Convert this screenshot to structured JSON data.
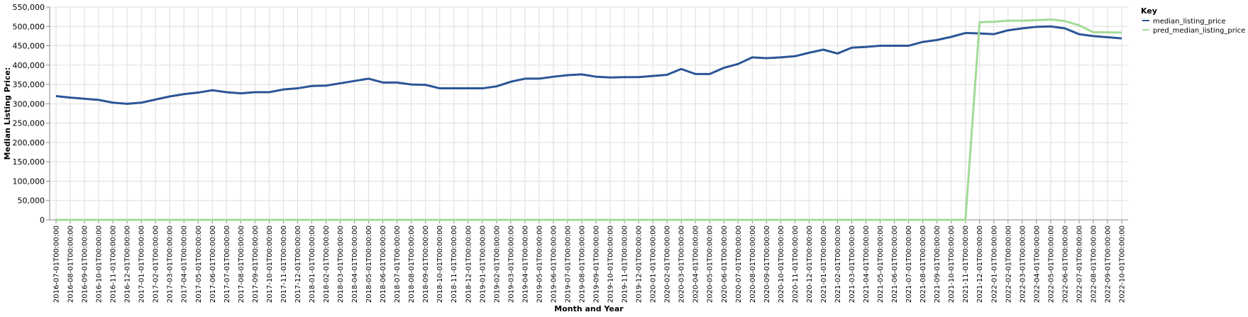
{
  "chart_data": {
    "type": "line",
    "xlabel": "Month and Year",
    "ylabel": "Median Listing Price:",
    "ylim": [
      0,
      550000
    ],
    "grid": true,
    "legend": {
      "title": "Key",
      "placement": "right"
    },
    "y_ticks": [
      "0",
      "50,000",
      "100,000",
      "150,000",
      "200,000",
      "250,000",
      "300,000",
      "350,000",
      "400,000",
      "450,000",
      "500,000",
      "550,000"
    ],
    "x": [
      "2016-07-01T00:00:00",
      "2016-08-01T00:00:00",
      "2016-09-01T00:00:00",
      "2016-10-01T00:00:00",
      "2016-11-01T00:00:00",
      "2016-12-01T00:00:00",
      "2017-01-01T00:00:00",
      "2017-02-01T00:00:00",
      "2017-03-01T00:00:00",
      "2017-04-01T00:00:00",
      "2017-05-01T00:00:00",
      "2017-06-01T00:00:00",
      "2017-07-01T00:00:00",
      "2017-08-01T00:00:00",
      "2017-09-01T00:00:00",
      "2017-10-01T00:00:00",
      "2017-11-01T00:00:00",
      "2017-12-01T00:00:00",
      "2018-01-01T00:00:00",
      "2018-02-01T00:00:00",
      "2018-03-01T00:00:00",
      "2018-04-01T00:00:00",
      "2018-05-01T00:00:00",
      "2018-06-01T00:00:00",
      "2018-07-01T00:00:00",
      "2018-08-01T00:00:00",
      "2018-09-01T00:00:00",
      "2018-10-01T00:00:00",
      "2018-11-01T00:00:00",
      "2018-12-01T00:00:00",
      "2019-01-01T00:00:00",
      "2019-02-01T00:00:00",
      "2019-03-01T00:00:00",
      "2019-04-01T00:00:00",
      "2019-05-01T00:00:00",
      "2019-06-01T00:00:00",
      "2019-07-01T00:00:00",
      "2019-08-01T00:00:00",
      "2019-09-01T00:00:00",
      "2019-10-01T00:00:00",
      "2019-11-01T00:00:00",
      "2019-12-01T00:00:00",
      "2020-01-01T00:00:00",
      "2020-02-01T00:00:00",
      "2020-03-01T00:00:00",
      "2020-04-01T00:00:00",
      "2020-05-01T00:00:00",
      "2020-06-01T00:00:00",
      "2020-07-01T00:00:00",
      "2020-08-01T00:00:00",
      "2020-09-01T00:00:00",
      "2020-10-01T00:00:00",
      "2020-11-01T00:00:00",
      "2020-12-01T00:00:00",
      "2021-01-01T00:00:00",
      "2021-02-01T00:00:00",
      "2021-03-01T00:00:00",
      "2021-04-01T00:00:00",
      "2021-05-01T00:00:00",
      "2021-06-01T00:00:00",
      "2021-07-01T00:00:00",
      "2021-08-01T00:00:00",
      "2021-09-01T00:00:00",
      "2021-10-01T00:00:00",
      "2021-11-01T00:00:00",
      "2021-12-01T00:00:00",
      "2022-01-01T00:00:00",
      "2022-02-01T00:00:00",
      "2022-03-01T00:00:00",
      "2022-04-01T00:00:00",
      "2022-05-01T00:00:00",
      "2022-06-01T00:00:00",
      "2022-07-01T00:00:00",
      "2022-08-01T00:00:00",
      "2022-09-01T00:00:00",
      "2022-10-01T00:00:00"
    ],
    "series": [
      {
        "name": "median_listing_price",
        "color": "#2b5597",
        "values": [
          320000,
          316000,
          313000,
          310000,
          303000,
          300000,
          303000,
          311000,
          319000,
          325000,
          329000,
          335000,
          330000,
          327000,
          330000,
          330000,
          337000,
          340000,
          346000,
          347000,
          353000,
          359000,
          365000,
          355000,
          355000,
          350000,
          349000,
          340000,
          340000,
          340000,
          340000,
          345000,
          357000,
          365000,
          365000,
          370000,
          374000,
          376000,
          370000,
          368000,
          369000,
          369000,
          372000,
          375000,
          390000,
          377000,
          377000,
          393000,
          403000,
          420000,
          418000,
          420000,
          423000,
          432000,
          440000,
          430000,
          445000,
          447000,
          450000,
          450000,
          450000,
          460000,
          465000,
          473000,
          483000,
          482000,
          480000,
          490000,
          495000,
          499000,
          500000,
          495000,
          480000,
          475000,
          472000,
          469000
        ]
      },
      {
        "name": "pred_median_listing_price",
        "color": "#a1dc96",
        "values": [
          0,
          0,
          0,
          0,
          0,
          0,
          0,
          0,
          0,
          0,
          0,
          0,
          0,
          0,
          0,
          0,
          0,
          0,
          0,
          0,
          0,
          0,
          0,
          0,
          0,
          0,
          0,
          0,
          0,
          0,
          0,
          0,
          0,
          0,
          0,
          0,
          0,
          0,
          0,
          0,
          0,
          0,
          0,
          0,
          0,
          0,
          0,
          0,
          0,
          0,
          0,
          0,
          0,
          0,
          0,
          0,
          0,
          0,
          0,
          0,
          0,
          0,
          0,
          0,
          0,
          511000,
          512000,
          515000,
          515000,
          516000,
          518000,
          514000,
          503000,
          485000,
          485000,
          484000
        ]
      }
    ]
  }
}
